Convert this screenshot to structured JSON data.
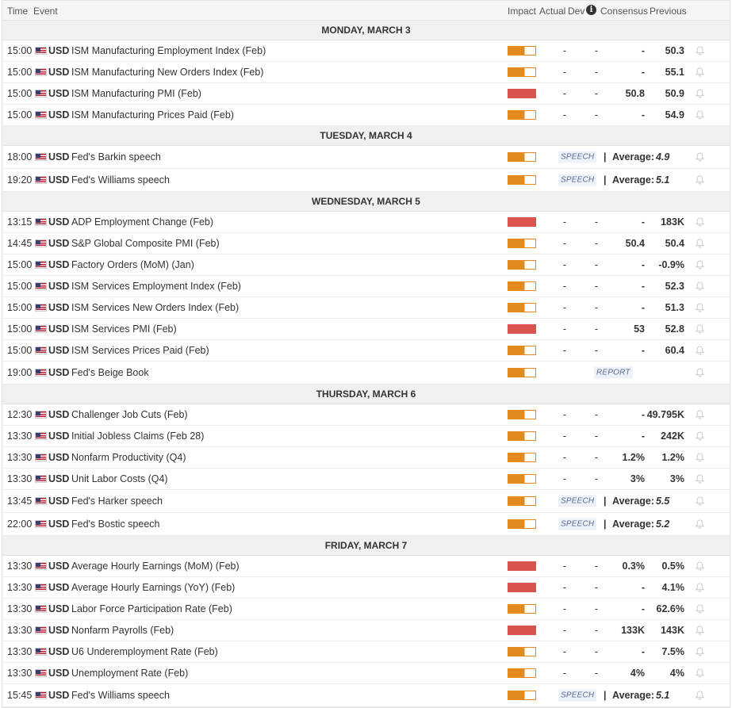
{
  "header": {
    "time": "Time",
    "event": "Event",
    "impact": "Impact",
    "actual": "Actual",
    "dev": "Dev",
    "consensus": "Consensus",
    "previous": "Previous"
  },
  "colors": {
    "impact_medium": "#e38a1f",
    "impact_high": "#d9534f",
    "flag_icon": "us-flag-icon",
    "reminder_icon": "bell-icon"
  },
  "days": [
    {
      "label": "MONDAY, MARCH 3",
      "events": [
        {
          "time": "15:00",
          "currency": "USD",
          "name": "ISM Manufacturing Employment Index (Feb)",
          "impact": "medium",
          "actual": "-",
          "dev": "-",
          "consensus": "-",
          "previous": "50.3"
        },
        {
          "time": "15:00",
          "currency": "USD",
          "name": "ISM Manufacturing New Orders Index (Feb)",
          "impact": "medium",
          "actual": "-",
          "dev": "-",
          "consensus": "-",
          "previous": "55.1"
        },
        {
          "time": "15:00",
          "currency": "USD",
          "name": "ISM Manufacturing PMI (Feb)",
          "impact": "high",
          "actual": "-",
          "dev": "-",
          "consensus": "50.8",
          "previous": "50.9"
        },
        {
          "time": "15:00",
          "currency": "USD",
          "name": "ISM Manufacturing Prices Paid (Feb)",
          "impact": "medium",
          "actual": "-",
          "dev": "-",
          "consensus": "-",
          "previous": "54.9"
        }
      ]
    },
    {
      "label": "TUESDAY, MARCH 4",
      "events": [
        {
          "time": "18:00",
          "currency": "USD",
          "name": "Fed's Barkin speech",
          "impact": "medium",
          "tag": "SPEECH",
          "avg_label": "Average:",
          "avg_value": "4.9"
        },
        {
          "time": "19:20",
          "currency": "USD",
          "name": "Fed's Williams speech",
          "impact": "medium",
          "tag": "SPEECH",
          "avg_label": "Average:",
          "avg_value": "5.1"
        }
      ]
    },
    {
      "label": "WEDNESDAY, MARCH 5",
      "events": [
        {
          "time": "13:15",
          "currency": "USD",
          "name": "ADP Employment Change (Feb)",
          "impact": "high",
          "actual": "-",
          "dev": "-",
          "consensus": "-",
          "previous": "183K"
        },
        {
          "time": "14:45",
          "currency": "USD",
          "name": "S&P Global Composite PMI (Feb)",
          "impact": "medium",
          "actual": "-",
          "dev": "-",
          "consensus": "50.4",
          "previous": "50.4"
        },
        {
          "time": "15:00",
          "currency": "USD",
          "name": "Factory Orders (MoM) (Jan)",
          "impact": "medium",
          "actual": "-",
          "dev": "-",
          "consensus": "-",
          "previous": "-0.9%"
        },
        {
          "time": "15:00",
          "currency": "USD",
          "name": "ISM Services Employment Index (Feb)",
          "impact": "medium",
          "actual": "-",
          "dev": "-",
          "consensus": "-",
          "previous": "52.3"
        },
        {
          "time": "15:00",
          "currency": "USD",
          "name": "ISM Services New Orders Index (Feb)",
          "impact": "medium",
          "actual": "-",
          "dev": "-",
          "consensus": "-",
          "previous": "51.3"
        },
        {
          "time": "15:00",
          "currency": "USD",
          "name": "ISM Services PMI (Feb)",
          "impact": "high",
          "actual": "-",
          "dev": "-",
          "consensus": "53",
          "previous": "52.8"
        },
        {
          "time": "15:00",
          "currency": "USD",
          "name": "ISM Services Prices Paid (Feb)",
          "impact": "medium",
          "actual": "-",
          "dev": "-",
          "consensus": "-",
          "previous": "60.4"
        },
        {
          "time": "19:00",
          "currency": "USD",
          "name": "Fed's Beige Book",
          "impact": "medium",
          "tag": "REPORT"
        }
      ]
    },
    {
      "label": "THURSDAY, MARCH 6",
      "events": [
        {
          "time": "12:30",
          "currency": "USD",
          "name": "Challenger Job Cuts (Feb)",
          "impact": "medium",
          "actual": "-",
          "dev": "-",
          "consensus": "-",
          "previous": "49.795K"
        },
        {
          "time": "13:30",
          "currency": "USD",
          "name": "Initial Jobless Claims (Feb 28)",
          "impact": "medium",
          "actual": "-",
          "dev": "-",
          "consensus": "-",
          "previous": "242K"
        },
        {
          "time": "13:30",
          "currency": "USD",
          "name": "Nonfarm Productivity (Q4)",
          "impact": "medium",
          "actual": "-",
          "dev": "-",
          "consensus": "1.2%",
          "previous": "1.2%"
        },
        {
          "time": "13:30",
          "currency": "USD",
          "name": "Unit Labor Costs (Q4)",
          "impact": "medium",
          "actual": "-",
          "dev": "-",
          "consensus": "3%",
          "previous": "3%"
        },
        {
          "time": "13:45",
          "currency": "USD",
          "name": "Fed's Harker speech",
          "impact": "medium",
          "tag": "SPEECH",
          "avg_label": "Average:",
          "avg_value": "5.5"
        },
        {
          "time": "22:00",
          "currency": "USD",
          "name": "Fed's Bostic speech",
          "impact": "medium",
          "tag": "SPEECH",
          "avg_label": "Average:",
          "avg_value": "5.2"
        }
      ]
    },
    {
      "label": "FRIDAY, MARCH 7",
      "events": [
        {
          "time": "13:30",
          "currency": "USD",
          "name": "Average Hourly Earnings (MoM) (Feb)",
          "impact": "high",
          "actual": "-",
          "dev": "-",
          "consensus": "0.3%",
          "previous": "0.5%"
        },
        {
          "time": "13:30",
          "currency": "USD",
          "name": "Average Hourly Earnings (YoY) (Feb)",
          "impact": "high",
          "actual": "-",
          "dev": "-",
          "consensus": "-",
          "previous": "4.1%"
        },
        {
          "time": "13:30",
          "currency": "USD",
          "name": "Labor Force Participation Rate (Feb)",
          "impact": "medium",
          "actual": "-",
          "dev": "-",
          "consensus": "-",
          "previous": "62.6%"
        },
        {
          "time": "13:30",
          "currency": "USD",
          "name": "Nonfarm Payrolls (Feb)",
          "impact": "high",
          "actual": "-",
          "dev": "-",
          "consensus": "133K",
          "previous": "143K"
        },
        {
          "time": "13:30",
          "currency": "USD",
          "name": "U6 Underemployment Rate (Feb)",
          "impact": "medium",
          "actual": "-",
          "dev": "-",
          "consensus": "-",
          "previous": "7.5%"
        },
        {
          "time": "13:30",
          "currency": "USD",
          "name": "Unemployment Rate (Feb)",
          "impact": "medium",
          "actual": "-",
          "dev": "-",
          "consensus": "4%",
          "previous": "4%"
        },
        {
          "time": "15:45",
          "currency": "USD",
          "name": "Fed's Williams speech",
          "impact": "medium",
          "tag": "SPEECH",
          "avg_label": "Average:",
          "avg_value": "5.1"
        }
      ]
    }
  ]
}
